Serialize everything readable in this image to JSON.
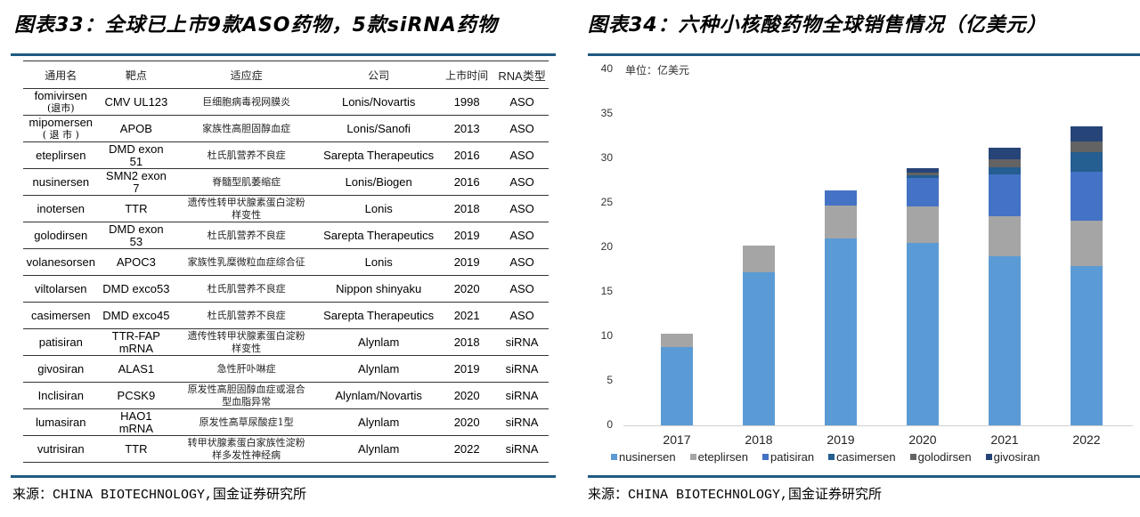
{
  "left": {
    "title": "图表33：全球已上市9款ASO药物，5款siRNA药物",
    "source": "来源：CHINA BIOTECHNOLOGY,国金证券研究所",
    "table": {
      "headers": [
        "通用名",
        "靶点",
        "适应症",
        "公司",
        "上市时间",
        "RNA类型"
      ],
      "rows": [
        {
          "name": "fomivirsen",
          "note": "(退市)",
          "target": "CMV UL123",
          "indication": "巨细胞病毒视网膜炎",
          "company": "Lonis/Novartis",
          "year": "1998",
          "type": "ASO"
        },
        {
          "name": "mipomersen",
          "note": "( 退 市 )",
          "target": "APOB",
          "indication": "家族性高胆固醇血症",
          "company": "Lonis/Sanofi",
          "year": "2013",
          "type": "ASO"
        },
        {
          "name": "eteplirsen",
          "note": "",
          "target": "DMD exon 51",
          "indication": "杜氏肌营养不良症",
          "company": "Sarepta Therapeutics",
          "year": "2016",
          "type": "ASO"
        },
        {
          "name": "nusinersen",
          "note": "",
          "target": "SMN2 exon 7",
          "indication": "脊髓型肌萎缩症",
          "company": "Lonis/Biogen",
          "year": "2016",
          "type": "ASO"
        },
        {
          "name": "inotersen",
          "note": "",
          "target": "TTR",
          "indication": "遗传性转甲状腺素蛋白淀粉样变性",
          "company": "Lonis",
          "year": "2018",
          "type": "ASO"
        },
        {
          "name": "golodirsen",
          "note": "",
          "target": "DMD exon 53",
          "indication": "杜氏肌营养不良症",
          "company": "Sarepta Therapeutics",
          "year": "2019",
          "type": "ASO"
        },
        {
          "name": "volanesorsen",
          "note": "",
          "target": "APOC3",
          "indication": "家族性乳糜微粒血症综合征",
          "company": "Lonis",
          "year": "2019",
          "type": "ASO"
        },
        {
          "name": "viltolarsen",
          "note": "",
          "target": "DMD exco53",
          "indication": "杜氏肌营养不良症",
          "company": "Nippon shinyaku",
          "year": "2020",
          "type": "ASO"
        },
        {
          "name": "casimersen",
          "note": "",
          "target": "DMD exco45",
          "indication": "杜氏肌营养不良症",
          "company": "Sarepta Therapeutics",
          "year": "2021",
          "type": "ASO"
        },
        {
          "name": "patisiran",
          "note": "",
          "target": "TTR-FAP mRNA",
          "indication": "遗传性转甲状腺素蛋白淀粉样变性",
          "company": "Alynlam",
          "year": "2018",
          "type": "siRNA"
        },
        {
          "name": "givosiran",
          "note": "",
          "target": "ALAS1",
          "indication": "急性肝卟啉症",
          "company": "Alynlam",
          "year": "2019",
          "type": "siRNA"
        },
        {
          "name": "Inclisiran",
          "note": "",
          "target": "PCSK9",
          "indication": "原发性高胆固醇血症或混合型血脂异常",
          "company": "Alynlam/Novartis",
          "year": "2020",
          "type": "siRNA"
        },
        {
          "name": "lumasiran",
          "note": "",
          "target": "HAO1 mRNA",
          "indication": "原发性高草尿酸症1型",
          "company": "Alynlam",
          "year": "2020",
          "type": "siRNA"
        },
        {
          "name": "vutrisiran",
          "note": "",
          "target": "TTR",
          "indication": "转甲状腺素蛋白家族性淀粉样多发性神经病",
          "company": "Alynlam",
          "year": "2022",
          "type": "siRNA"
        }
      ]
    }
  },
  "right": {
    "title": "图表34：六种小核酸药物全球销售情况（亿美元）",
    "source": "来源：CHINA BIOTECHNOLOGY,国金证券研究所"
  },
  "chart_data": {
    "type": "bar",
    "stacked": true,
    "title": "六种小核酸药物全球销售情况（亿美元）",
    "unit_label": "单位：亿美元",
    "xlabel": "",
    "ylabel": "",
    "ylim": [
      0,
      40
    ],
    "yticks": [
      0,
      5,
      10,
      15,
      20,
      25,
      30,
      35,
      40
    ],
    "categories": [
      "2017",
      "2018",
      "2019",
      "2020",
      "2021",
      "2022"
    ],
    "legend_position": "bottom",
    "grid": false,
    "series": [
      {
        "name": "nusinersen",
        "color": "#5b9bd5",
        "values": [
          8.8,
          17.2,
          21.0,
          20.5,
          19.0,
          17.9
        ]
      },
      {
        "name": "eteplirsen",
        "color": "#a5a5a5",
        "values": [
          1.5,
          3.0,
          3.7,
          4.1,
          4.5,
          5.1
        ]
      },
      {
        "name": "patisiran",
        "color": "#4472c4",
        "values": [
          0,
          0,
          1.7,
          3.2,
          4.7,
          5.5
        ]
      },
      {
        "name": "casimersen",
        "color": "#255e91",
        "values": [
          0,
          0,
          0,
          0.3,
          0.8,
          2.2
        ]
      },
      {
        "name": "golodirsen",
        "color": "#636363",
        "values": [
          0,
          0,
          0,
          0.3,
          0.9,
          1.2
        ]
      },
      {
        "name": "givosiran",
        "color": "#264478",
        "values": [
          0,
          0,
          0,
          0.5,
          1.3,
          1.7
        ]
      }
    ]
  }
}
